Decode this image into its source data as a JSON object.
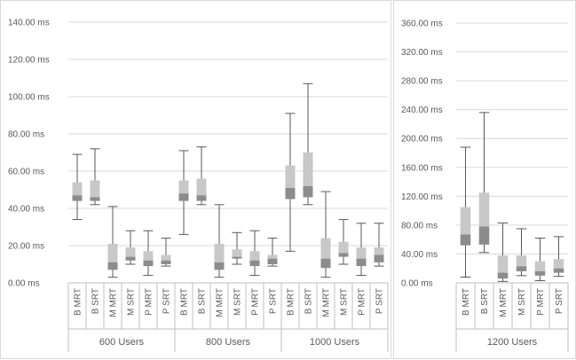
{
  "colors": {
    "grid": "#d9d9d9",
    "axis": "#bfbfbf",
    "text": "#595959",
    "whisker": "#595959",
    "box_upper": "#c8c8c8",
    "box_lower": "#8c8c8c",
    "median": "#6f6f6f"
  },
  "chart_data": [
    {
      "type": "boxplot",
      "y_tick_labels": [
        "0.00 ms",
        "20.00 ms",
        "40.00 ms",
        "60.00 ms",
        "80.00 ms",
        "100.00 ms",
        "120.00 ms",
        "140.00 ms"
      ],
      "ylim": [
        0,
        140
      ],
      "grid": true,
      "categories": [
        "B MRT",
        "B SRT",
        "M MRT",
        "M SRT",
        "P MRT",
        "P SRT"
      ],
      "groups": [
        {
          "label": "600 Users",
          "boxes": [
            {
              "name": "B MRT",
              "min": 34,
              "q1": 44,
              "median": 47,
              "q3": 54,
              "max": 69
            },
            {
              "name": "B SRT",
              "min": 42,
              "q1": 44,
              "median": 46,
              "q3": 55,
              "max": 72
            },
            {
              "name": "M MRT",
              "min": 3,
              "q1": 7,
              "median": 11,
              "q3": 21,
              "max": 41
            },
            {
              "name": "M SRT",
              "min": 10,
              "q1": 12,
              "median": 14,
              "q3": 19,
              "max": 28
            },
            {
              "name": "P MRT",
              "min": 4,
              "q1": 9,
              "median": 12,
              "q3": 17,
              "max": 28
            },
            {
              "name": "P SRT",
              "min": 9,
              "q1": 10,
              "median": 12,
              "q3": 15,
              "max": 24
            }
          ]
        },
        {
          "label": "800 Users",
          "boxes": [
            {
              "name": "B MRT",
              "min": 26,
              "q1": 44,
              "median": 48,
              "q3": 55,
              "max": 71
            },
            {
              "name": "B SRT",
              "min": 42,
              "q1": 44,
              "median": 47,
              "q3": 56,
              "max": 73
            },
            {
              "name": "M MRT",
              "min": 3,
              "q1": 7,
              "median": 11,
              "q3": 21,
              "max": 42
            },
            {
              "name": "M SRT",
              "min": 10,
              "q1": 13,
              "median": 14,
              "q3": 18,
              "max": 27
            },
            {
              "name": "P MRT",
              "min": 4,
              "q1": 9,
              "median": 12,
              "q3": 17,
              "max": 28
            },
            {
              "name": "P SRT",
              "min": 9,
              "q1": 10,
              "median": 13,
              "q3": 15,
              "max": 24
            }
          ]
        },
        {
          "label": "1000 Users",
          "boxes": [
            {
              "name": "B MRT",
              "min": 17,
              "q1": 45,
              "median": 51,
              "q3": 63,
              "max": 91
            },
            {
              "name": "B SRT",
              "min": 42,
              "q1": 46,
              "median": 52,
              "q3": 70,
              "max": 107
            },
            {
              "name": "M MRT",
              "min": 3,
              "q1": 8,
              "median": 13,
              "q3": 24,
              "max": 49
            },
            {
              "name": "M SRT",
              "min": 10,
              "q1": 14,
              "median": 16,
              "q3": 22,
              "max": 34
            },
            {
              "name": "P MRT",
              "min": 4,
              "q1": 9,
              "median": 13,
              "q3": 19,
              "max": 32
            },
            {
              "name": "P SRT",
              "min": 9,
              "q1": 11,
              "median": 15,
              "q3": 19,
              "max": 32
            }
          ]
        }
      ]
    },
    {
      "type": "boxplot",
      "y_tick_labels": [
        "0.00 ms",
        "40.00 ms",
        "80.00 ms",
        "120.00 ms",
        "160.00 ms",
        "200.00 ms",
        "240.00 ms",
        "280.00 ms",
        "320.00 ms",
        "360.00 ms"
      ],
      "ylim": [
        0,
        360
      ],
      "grid": true,
      "categories": [
        "B MRT",
        "B SRT",
        "M MRT",
        "M SRT",
        "P MRT",
        "P SRT"
      ],
      "groups": [
        {
          "label": "1200 Users",
          "boxes": [
            {
              "name": "B MRT",
              "min": 8,
              "q1": 52,
              "median": 67,
              "q3": 105,
              "max": 188
            },
            {
              "name": "B SRT",
              "min": 42,
              "q1": 53,
              "median": 78,
              "q3": 125,
              "max": 236
            },
            {
              "name": "M MRT",
              "min": 2,
              "q1": 6,
              "median": 14,
              "q3": 38,
              "max": 83
            },
            {
              "name": "M SRT",
              "min": 10,
              "q1": 16,
              "median": 23,
              "q3": 38,
              "max": 75
            },
            {
              "name": "P MRT",
              "min": 3,
              "q1": 10,
              "median": 16,
              "q3": 30,
              "max": 62
            },
            {
              "name": "P SRT",
              "min": 9,
              "q1": 14,
              "median": 20,
              "q3": 33,
              "max": 64
            }
          ]
        }
      ]
    }
  ]
}
